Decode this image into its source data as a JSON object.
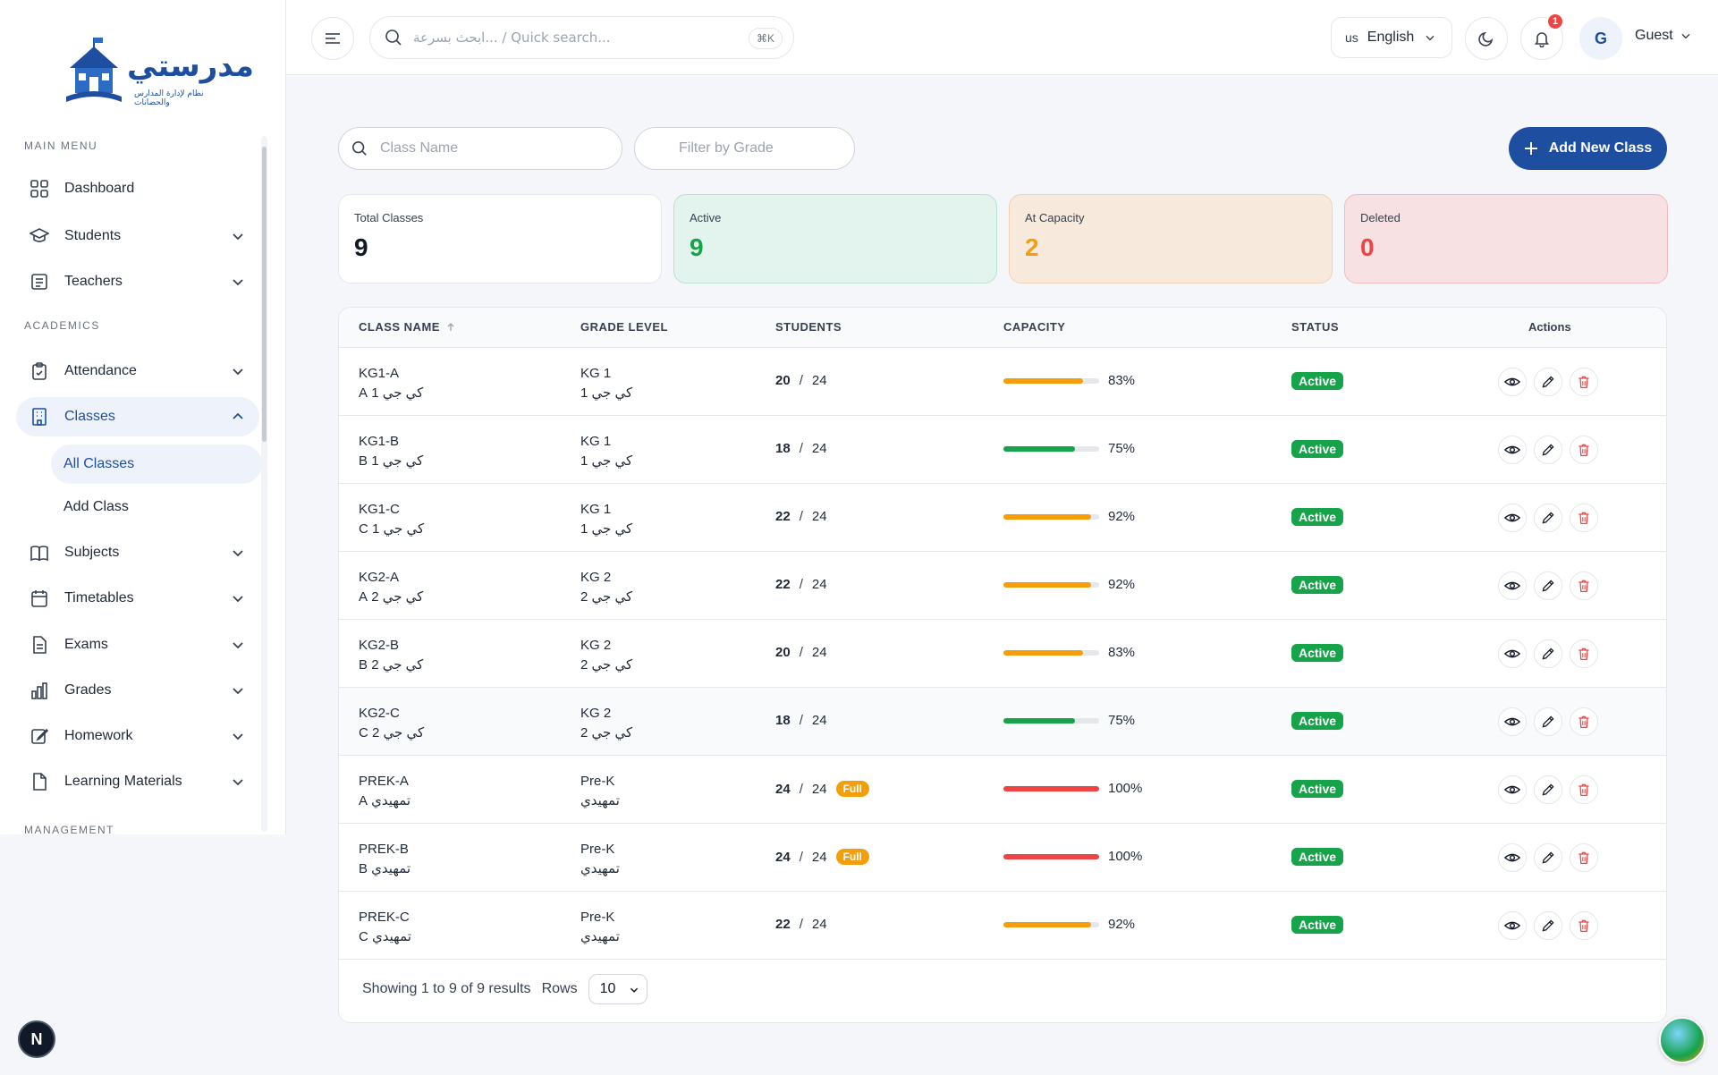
{
  "brand": {
    "name": "مدرستي",
    "tagline": "نظام لإدارة المدارس والحضانات"
  },
  "sidebar": {
    "sections": {
      "main": "MAIN MENU",
      "academics": "ACADEMICS",
      "management": "MANAGEMENT"
    },
    "items": {
      "dashboard": "Dashboard",
      "students": "Students",
      "teachers": "Teachers",
      "attendance": "Attendance",
      "classes": "Classes",
      "all_classes": "All Classes",
      "add_class": "Add Class",
      "subjects": "Subjects",
      "timetables": "Timetables",
      "exams": "Exams",
      "grades": "Grades",
      "homework": "Homework",
      "learning_materials": "Learning Materials"
    }
  },
  "header": {
    "search_placeholder": "ابحث بسرعة... / Quick search...",
    "shortcut": "⌘K",
    "lang_code": "us",
    "lang_label": "English",
    "notifications": "1",
    "avatar_initial": "G",
    "user_name": "Guest"
  },
  "filters": {
    "class_name_placeholder": "Class Name",
    "grade_placeholder": "Filter by Grade",
    "add_button": "Add New Class"
  },
  "stats": {
    "total_label": "Total Classes",
    "total_value": "9",
    "active_label": "Active",
    "active_value": "9",
    "capacity_label": "At Capacity",
    "capacity_value": "2",
    "deleted_label": "Deleted",
    "deleted_value": "0"
  },
  "table": {
    "headers": {
      "class_name": "CLASS NAME",
      "grade_level": "GRADE LEVEL",
      "students": "STUDENTS",
      "capacity": "CAPACITY",
      "status": "STATUS",
      "actions": "Actions"
    },
    "rows": [
      {
        "name": "KG1-A",
        "name_ar": "كي جي 1 A",
        "grade": "KG 1",
        "grade_ar": "كي جي 1",
        "students": "20",
        "max": "24",
        "full": "",
        "pct": 83,
        "pct_label": "83%",
        "status": "Active"
      },
      {
        "name": "KG1-B",
        "name_ar": "كي جي 1 B",
        "grade": "KG 1",
        "grade_ar": "كي جي 1",
        "students": "18",
        "max": "24",
        "full": "",
        "pct": 75,
        "pct_label": "75%",
        "status": "Active"
      },
      {
        "name": "KG1-C",
        "name_ar": "كي جي 1 C",
        "grade": "KG 1",
        "grade_ar": "كي جي 1",
        "students": "22",
        "max": "24",
        "full": "",
        "pct": 92,
        "pct_label": "92%",
        "status": "Active"
      },
      {
        "name": "KG2-A",
        "name_ar": "كي جي 2 A",
        "grade": "KG 2",
        "grade_ar": "كي جي 2",
        "students": "22",
        "max": "24",
        "full": "",
        "pct": 92,
        "pct_label": "92%",
        "status": "Active"
      },
      {
        "name": "KG2-B",
        "name_ar": "كي جي 2 B",
        "grade": "KG 2",
        "grade_ar": "كي جي 2",
        "students": "20",
        "max": "24",
        "full": "",
        "pct": 83,
        "pct_label": "83%",
        "status": "Active"
      },
      {
        "name": "KG2-C",
        "name_ar": "كي جي 2 C",
        "grade": "KG 2",
        "grade_ar": "كي جي 2",
        "students": "18",
        "max": "24",
        "full": "",
        "pct": 75,
        "pct_label": "75%",
        "status": "Active"
      },
      {
        "name": "PREK-A",
        "name_ar": "تمهيدي A",
        "grade": "Pre-K",
        "grade_ar": "تمهيدي",
        "students": "24",
        "max": "24",
        "full": "Full",
        "pct": 100,
        "pct_label": "100%",
        "status": "Active"
      },
      {
        "name": "PREK-B",
        "name_ar": "تمهيدي B",
        "grade": "Pre-K",
        "grade_ar": "تمهيدي",
        "students": "24",
        "max": "24",
        "full": "Full",
        "pct": 100,
        "pct_label": "100%",
        "status": "Active"
      },
      {
        "name": "PREK-C",
        "name_ar": "تمهيدي C",
        "grade": "Pre-K",
        "grade_ar": "تمهيدي",
        "students": "22",
        "max": "24",
        "full": "",
        "pct": 92,
        "pct_label": "92%",
        "status": "Active"
      }
    ],
    "footer": {
      "showing": "Showing 1 to 9 of 9 results",
      "rows_label": "Rows",
      "rows_value": "10"
    }
  },
  "colors": {
    "primary": "#1d4ea0",
    "green": "#16a34a",
    "orange": "#f59e0b",
    "red": "#ef4444",
    "bar_green": "#16a34a",
    "bar_orange": "#f59e0b",
    "bar_red": "#ef4444"
  },
  "misc": {
    "next_badge": "N"
  }
}
